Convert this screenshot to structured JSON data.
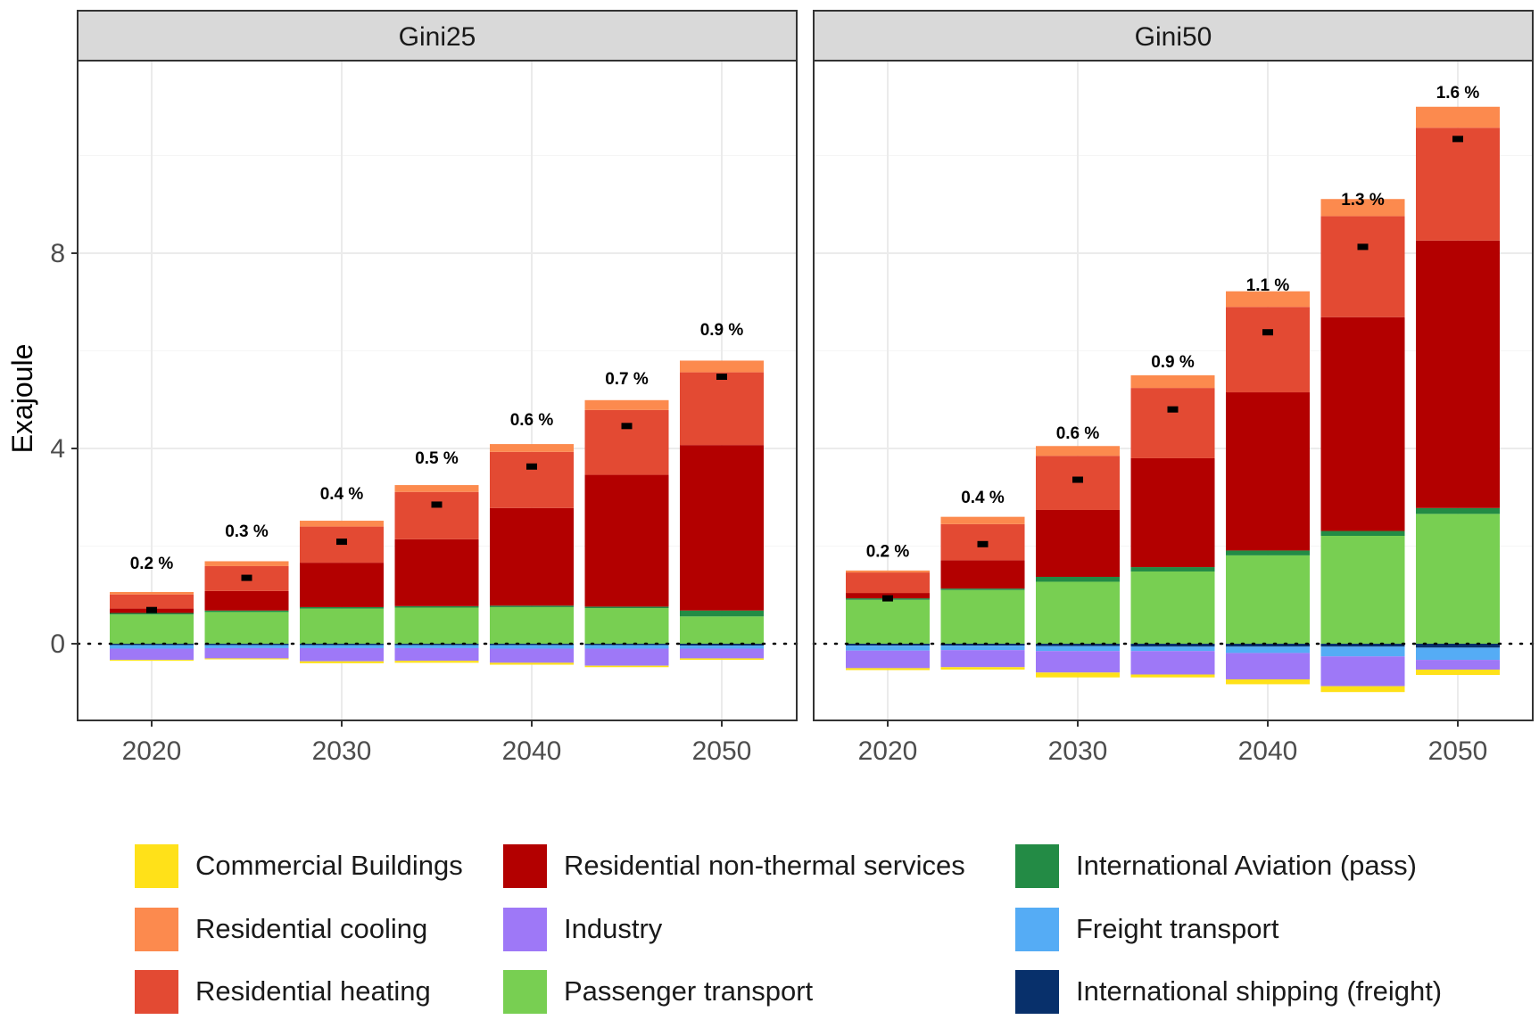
{
  "chart_data": {
    "type": "bar",
    "stacked": true,
    "ylabel": "Exajoule",
    "xlabel": "",
    "ylim": [
      -1.6,
      12.4
    ],
    "yticks": [
      0,
      4,
      8
    ],
    "xticks": [
      2020,
      2030,
      2040,
      2050
    ],
    "x": [
      2020,
      2025,
      2030,
      2035,
      2040,
      2045,
      2050
    ],
    "grid": true,
    "zero_line": "dotted",
    "legend_position": "bottom",
    "categories_order_positive": [
      "Passenger transport",
      "International Aviation (pass)",
      "Residential non-thermal services",
      "Residential heating",
      "Residential cooling"
    ],
    "categories_order_negative": [
      "International shipping (freight)",
      "Freight transport",
      "Industry",
      "Commercial Buildings"
    ],
    "legend": [
      {
        "name": "Commercial Buildings",
        "color": "#FFE119"
      },
      {
        "name": "Residential cooling",
        "color": "#FC8A4E"
      },
      {
        "name": "Residential heating",
        "color": "#E34A33"
      },
      {
        "name": "Residential non-thermal services",
        "color": "#B30000"
      },
      {
        "name": "Industry",
        "color": "#9E78F7"
      },
      {
        "name": "Passenger transport",
        "color": "#78CF52"
      },
      {
        "name": "International Aviation (pass)",
        "color": "#238B45"
      },
      {
        "name": "Freight transport",
        "color": "#55ACF5"
      },
      {
        "name": "International shipping (freight)",
        "color": "#08306B"
      }
    ],
    "panels": [
      {
        "title": "Gini25",
        "series": [
          {
            "name": "Passenger transport",
            "values": [
              0.6,
              0.65,
              0.72,
              0.74,
              0.75,
              0.73,
              0.56
            ]
          },
          {
            "name": "International Aviation (pass)",
            "values": [
              0.03,
              0.03,
              0.03,
              0.03,
              0.03,
              0.03,
              0.12
            ]
          },
          {
            "name": "Residential non-thermal services",
            "values": [
              0.09,
              0.4,
              0.91,
              1.37,
              2.0,
              2.7,
              3.39
            ]
          },
          {
            "name": "Residential heating",
            "values": [
              0.29,
              0.51,
              0.74,
              0.97,
              1.15,
              1.33,
              1.49
            ]
          },
          {
            "name": "Residential cooling",
            "values": [
              0.05,
              0.1,
              0.12,
              0.14,
              0.16,
              0.2,
              0.24
            ]
          },
          {
            "name": "International shipping (freight)",
            "values": [
              -0.03,
              -0.03,
              -0.03,
              -0.03,
              -0.03,
              -0.03,
              -0.04
            ]
          },
          {
            "name": "Freight transport",
            "values": [
              -0.07,
              -0.06,
              -0.06,
              -0.06,
              -0.07,
              -0.07,
              -0.06
            ]
          },
          {
            "name": "Industry",
            "values": [
              -0.23,
              -0.21,
              -0.27,
              -0.26,
              -0.29,
              -0.35,
              -0.2
            ]
          },
          {
            "name": "Commercial Buildings",
            "values": [
              -0.02,
              -0.02,
              -0.04,
              -0.04,
              -0.04,
              -0.03,
              -0.03
            ]
          }
        ],
        "markers": [
          0.69,
          1.35,
          2.09,
          2.85,
          3.63,
          4.46,
          5.47
        ],
        "labels": [
          "0.2 %",
          "0.3 %",
          "0.4 %",
          "0.5 %",
          "0.6 %",
          "0.7 %",
          "0.9 %"
        ],
        "label_y": [
          1.66,
          2.32,
          3.09,
          3.82,
          4.6,
          5.44,
          6.45
        ]
      },
      {
        "title": "Gini50",
        "series": [
          {
            "name": "Passenger transport",
            "values": [
              0.9,
              1.1,
              1.27,
              1.48,
              1.81,
              2.21,
              2.66
            ]
          },
          {
            "name": "International Aviation (pass)",
            "values": [
              0.03,
              0.03,
              0.1,
              0.09,
              0.1,
              0.1,
              0.12
            ]
          },
          {
            "name": "Residential non-thermal services",
            "values": [
              0.11,
              0.58,
              1.37,
              2.23,
              3.24,
              4.38,
              5.48
            ]
          },
          {
            "name": "Residential heating",
            "values": [
              0.42,
              0.74,
              1.11,
              1.44,
              1.75,
              2.07,
              2.31
            ]
          },
          {
            "name": "Residential cooling",
            "values": [
              0.04,
              0.15,
              0.2,
              0.26,
              0.32,
              0.35,
              0.43
            ]
          },
          {
            "name": "International shipping (freight)",
            "values": [
              -0.04,
              -0.04,
              -0.05,
              -0.06,
              -0.06,
              -0.06,
              -0.08
            ]
          },
          {
            "name": "Freight transport",
            "values": [
              -0.1,
              -0.09,
              -0.1,
              -0.09,
              -0.13,
              -0.2,
              -0.25
            ]
          },
          {
            "name": "Industry",
            "values": [
              -0.36,
              -0.35,
              -0.44,
              -0.48,
              -0.54,
              -0.61,
              -0.2
            ]
          },
          {
            "name": "Commercial Buildings",
            "values": [
              -0.04,
              -0.05,
              -0.1,
              -0.06,
              -0.1,
              -0.12,
              -0.11
            ]
          }
        ],
        "markers": [
          0.93,
          2.04,
          3.36,
          4.8,
          6.38,
          8.13,
          10.34
        ],
        "labels": [
          "0.2 %",
          "0.4 %",
          "0.6 %",
          "0.9 %",
          "1.1 %",
          "1.3 %",
          "1.6 %"
        ],
        "label_y": [
          1.91,
          3.01,
          4.33,
          5.79,
          7.36,
          9.11,
          11.31
        ]
      }
    ]
  }
}
